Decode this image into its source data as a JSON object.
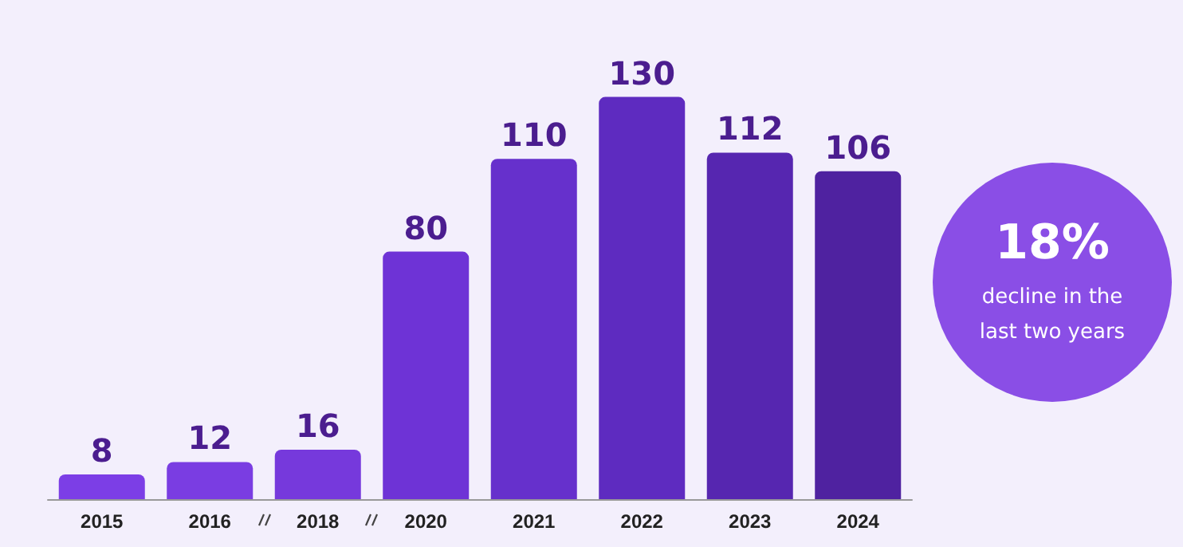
{
  "chart_data": {
    "type": "bar",
    "categories": [
      "2015",
      "2016",
      "2018",
      "2020",
      "2021",
      "2022",
      "2023",
      "2024"
    ],
    "values": [
      8,
      12,
      16,
      80,
      110,
      130,
      112,
      106
    ],
    "colors": [
      "#7c3ee6",
      "#7a3de2",
      "#7639dc",
      "#6e33d6",
      "#6630cc",
      "#5e2bc0",
      "#5626b0",
      "#4f22a0"
    ],
    "data_labels": true,
    "annotations": [
      "18%",
      "decline in the last two years"
    ]
  }
}
